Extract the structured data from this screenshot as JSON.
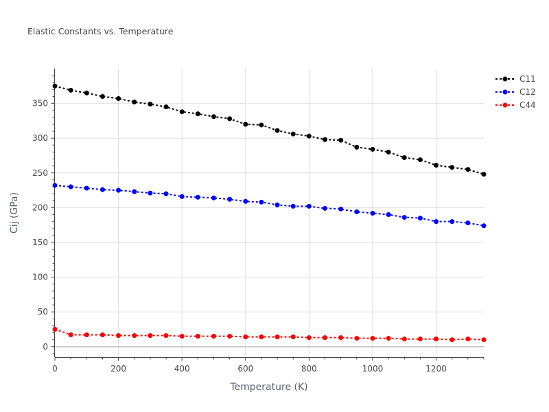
{
  "chart_data": {
    "type": "line",
    "title": "Elastic Constants vs. Temperature",
    "xlabel": "Temperature (K)",
    "ylabel": "Cij (GPa)",
    "xlim": [
      0,
      1350
    ],
    "ylim": [
      -15,
      400
    ],
    "x_ticks": [
      0,
      200,
      400,
      600,
      800,
      1000,
      1200
    ],
    "y_ticks": [
      0,
      50,
      100,
      150,
      200,
      250,
      300,
      350
    ],
    "grid": true,
    "legend_position": "top-right",
    "x": [
      0,
      50,
      100,
      150,
      200,
      250,
      300,
      350,
      400,
      450,
      500,
      550,
      600,
      650,
      700,
      750,
      800,
      850,
      900,
      950,
      1000,
      1050,
      1100,
      1150,
      1200,
      1250,
      1300,
      1350
    ],
    "series": [
      {
        "name": "C11",
        "color": "#000000",
        "values": [
          375,
          369,
          365,
          360,
          357,
          352,
          349,
          345,
          338,
          335,
          331,
          328,
          320,
          319,
          311,
          306,
          303,
          298,
          297,
          287,
          284,
          280,
          272,
          269,
          261,
          258,
          255,
          248
        ]
      },
      {
        "name": "C12",
        "color": "#0000ff",
        "values": [
          232,
          230,
          228,
          226,
          225,
          223,
          221,
          220,
          216,
          215,
          214,
          212,
          209,
          208,
          204,
          202,
          202,
          199,
          198,
          194,
          192,
          190,
          186,
          185,
          180,
          180,
          178,
          174
        ]
      },
      {
        "name": "C44",
        "color": "#ff0000",
        "values": [
          25,
          17,
          17,
          17,
          16,
          16,
          16,
          16,
          15,
          15,
          15,
          15,
          14,
          14,
          14,
          14,
          13,
          13,
          13,
          12,
          12,
          12,
          11,
          11,
          11,
          10,
          11,
          10
        ]
      }
    ]
  }
}
